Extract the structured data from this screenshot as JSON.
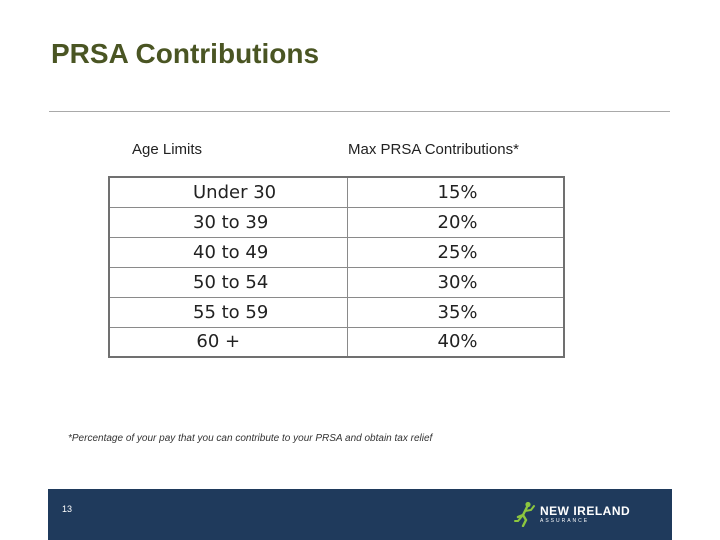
{
  "slide": {
    "title": "PRSA Contributions",
    "page_number": "13"
  },
  "table": {
    "header_age": "Age Limits",
    "header_max": "Max PRSA Contributions*",
    "rows": [
      {
        "age": "Under 30",
        "pct": "15%"
      },
      {
        "age": "30 to 39",
        "pct": "20%"
      },
      {
        "age": "40 to 49",
        "pct": "25%"
      },
      {
        "age": "50 to 54",
        "pct": "30%"
      },
      {
        "age": "55 to 59",
        "pct": "35%"
      },
      {
        "age": "60 +",
        "pct": "40%"
      }
    ]
  },
  "footnote": "*Percentage of your pay that you can contribute to your PRSA and obtain tax relief",
  "logo": {
    "name": "NEW IRELAND",
    "sub": "ASSURANCE",
    "icon": "running-figure-icon",
    "accent_color": "#8cc63f"
  },
  "colors": {
    "title": "#4a5523",
    "footer_bg": "#1f3a5c"
  }
}
